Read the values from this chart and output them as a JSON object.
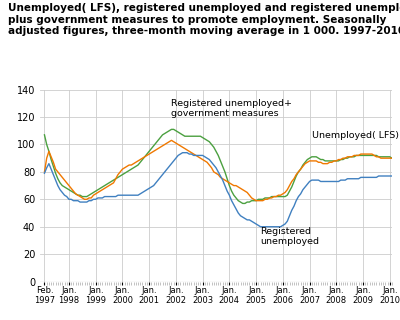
{
  "title_line1": "Unemployed( LFS), registered unemployed and registered unemployed",
  "title_line2": "plus government measures to promote employment. Seasonally",
  "title_line3": "adjusted figures, three-month moving average in 1 000. 1997-2010",
  "title_fontsize": 7.5,
  "xlim_end": 156,
  "ylim": [
    0,
    140
  ],
  "yticks": [
    0,
    20,
    40,
    60,
    80,
    100,
    120,
    140
  ],
  "xtick_labels": [
    "Feb.\n1997",
    "Jan.\n1998",
    "Jan.\n1999",
    "Jan.\n2000",
    "Jan.\n2001",
    "Jan.\n2002",
    "Jan.\n2003",
    "Jan.\n2004",
    "Jan.\n2005",
    "Jan.\n2006",
    "Jan.\n2007",
    "Jan.\n2008",
    "Jan.\n2009",
    "Jan.\n2010"
  ],
  "xtick_positions": [
    0,
    11,
    23,
    35,
    47,
    59,
    71,
    83,
    95,
    107,
    119,
    131,
    143,
    155
  ],
  "color_lfs": "#F07800",
  "color_reg_plus": "#4BA040",
  "color_reg": "#4080C0",
  "lfs": [
    80,
    90,
    95,
    91,
    87,
    82,
    80,
    78,
    76,
    74,
    72,
    70,
    68,
    66,
    64,
    63,
    62,
    61,
    60,
    60,
    61,
    61,
    63,
    64,
    65,
    66,
    67,
    68,
    69,
    70,
    71,
    72,
    75,
    78,
    80,
    82,
    83,
    84,
    85,
    85,
    86,
    87,
    88,
    89,
    90,
    91,
    92,
    93,
    94,
    95,
    96,
    97,
    98,
    99,
    100,
    101,
    102,
    103,
    102,
    101,
    100,
    99,
    98,
    97,
    96,
    95,
    94,
    93,
    92,
    91,
    90,
    89,
    88,
    87,
    85,
    83,
    80,
    79,
    78,
    76,
    75,
    74,
    73,
    72,
    71,
    70,
    70,
    69,
    68,
    67,
    66,
    65,
    63,
    61,
    60,
    59,
    59,
    59,
    59,
    60,
    60,
    61,
    61,
    62,
    62,
    63,
    63,
    64,
    65,
    67,
    70,
    73,
    75,
    78,
    80,
    82,
    84,
    86,
    87,
    88,
    88,
    88,
    88,
    87,
    87,
    86,
    86,
    86,
    87,
    87,
    88,
    88,
    89,
    89,
    90,
    90,
    91,
    91,
    91,
    92,
    92,
    92,
    93,
    93,
    93,
    93,
    93,
    93,
    92,
    91,
    91,
    90,
    90,
    90,
    90,
    90,
    90
  ],
  "reg_plus": [
    107,
    100,
    95,
    89,
    84,
    79,
    75,
    72,
    70,
    69,
    68,
    67,
    66,
    65,
    64,
    63,
    63,
    62,
    62,
    62,
    63,
    64,
    65,
    66,
    67,
    68,
    69,
    70,
    71,
    72,
    73,
    74,
    75,
    76,
    77,
    78,
    79,
    80,
    81,
    82,
    83,
    84,
    85,
    87,
    89,
    91,
    93,
    95,
    97,
    99,
    101,
    103,
    105,
    107,
    108,
    109,
    110,
    111,
    111,
    110,
    109,
    108,
    107,
    106,
    106,
    106,
    106,
    106,
    106,
    106,
    106,
    105,
    104,
    103,
    102,
    100,
    98,
    95,
    92,
    88,
    84,
    80,
    75,
    70,
    66,
    63,
    61,
    59,
    58,
    57,
    57,
    58,
    58,
    59,
    59,
    59,
    60,
    60,
    60,
    61,
    61,
    61,
    62,
    62,
    62,
    62,
    62,
    62,
    62,
    63,
    66,
    69,
    73,
    77,
    80,
    82,
    85,
    87,
    89,
    90,
    91,
    91,
    91,
    90,
    89,
    89,
    88,
    88,
    88,
    88,
    88,
    88,
    88,
    89,
    89,
    90,
    90,
    91,
    91,
    91,
    92,
    92,
    92,
    92,
    92,
    92,
    92,
    92,
    92,
    92,
    91,
    91,
    91,
    91,
    91,
    91,
    90
  ],
  "reg": [
    79,
    83,
    86,
    82,
    78,
    74,
    70,
    67,
    65,
    63,
    62,
    60,
    60,
    59,
    59,
    59,
    58,
    58,
    58,
    58,
    59,
    59,
    60,
    60,
    61,
    61,
    61,
    62,
    62,
    62,
    62,
    62,
    62,
    63,
    63,
    63,
    63,
    63,
    63,
    63,
    63,
    63,
    63,
    64,
    65,
    66,
    67,
    68,
    69,
    70,
    72,
    74,
    76,
    78,
    80,
    82,
    84,
    86,
    88,
    90,
    92,
    93,
    94,
    94,
    94,
    93,
    93,
    92,
    92,
    92,
    92,
    92,
    91,
    90,
    89,
    87,
    85,
    83,
    80,
    77,
    74,
    70,
    66,
    63,
    59,
    56,
    53,
    50,
    48,
    47,
    46,
    45,
    45,
    44,
    43,
    42,
    41,
    40,
    40,
    40,
    40,
    40,
    40,
    40,
    40,
    40,
    40,
    41,
    42,
    44,
    48,
    52,
    55,
    59,
    62,
    64,
    67,
    69,
    71,
    73,
    74,
    74,
    74,
    74,
    73,
    73,
    73,
    73,
    73,
    73,
    73,
    73,
    73,
    74,
    74,
    74,
    75,
    75,
    75,
    75,
    75,
    75,
    76,
    76,
    76,
    76,
    76,
    76,
    76,
    76,
    77,
    77,
    77,
    77,
    77,
    77,
    77
  ],
  "ann_lfs_x": 120,
  "ann_lfs_y": 103,
  "ann_lfs_text": "Unemployed( LFS)",
  "ann_reg_plus_x": 57,
  "ann_reg_plus_y": 119,
  "ann_reg_plus_text": "Registered unemployed+\ngovernment measures",
  "ann_reg_x": 97,
  "ann_reg_y": 40,
  "ann_reg_text": "Registered\nunemployed",
  "grid_color": "#CCCCCC",
  "bg_color": "#FFFFFF"
}
